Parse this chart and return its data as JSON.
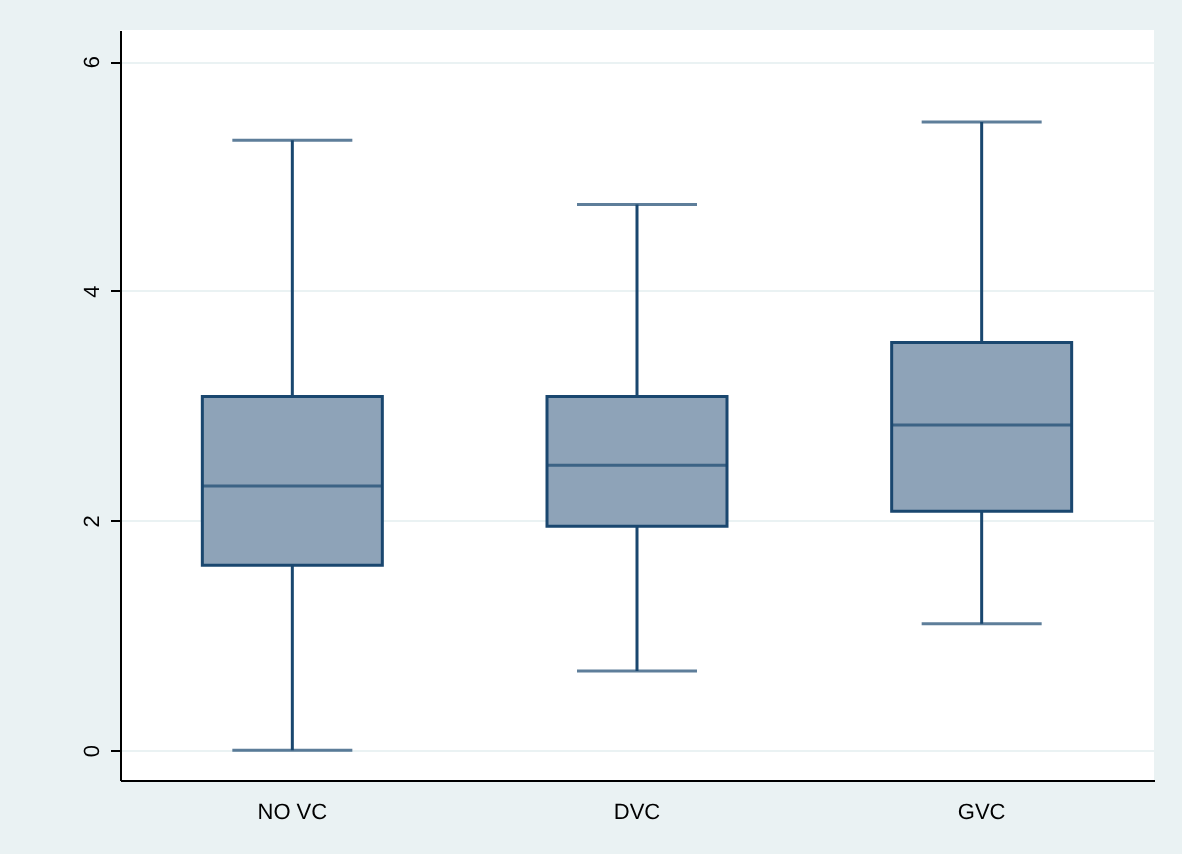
{
  "chart_data": {
    "type": "box",
    "categories": [
      "NO VC",
      "DVC",
      "GVC"
    ],
    "series": [
      {
        "color": "#8ea3b8",
        "boxes": [
          {
            "low": 0,
            "q1": 1.61,
            "median": 2.3,
            "q3": 3.08,
            "high": 5.31
          },
          {
            "low": 0.69,
            "q1": 1.95,
            "median": 2.48,
            "q3": 3.08,
            "high": 4.75
          },
          {
            "low": 1.1,
            "q1": 2.08,
            "median": 2.83,
            "q3": 3.55,
            "high": 5.47
          }
        ]
      }
    ],
    "ylim": [
      -0.26,
      6.27
    ],
    "yticks": [
      0,
      2,
      4,
      6
    ],
    "grid": "y"
  }
}
